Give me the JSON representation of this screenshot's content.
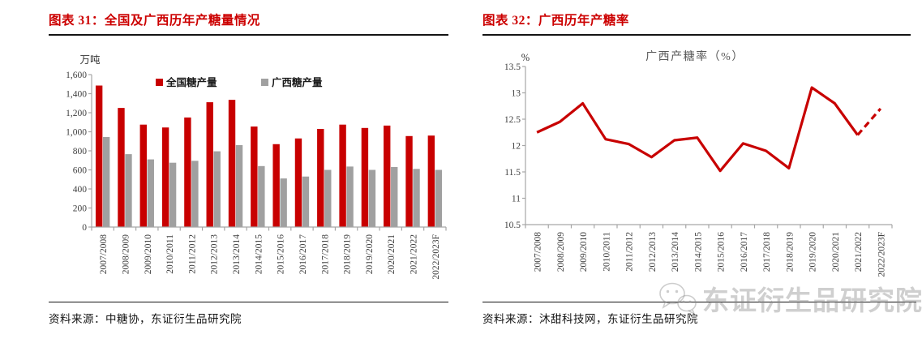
{
  "figure_left": {
    "title": "图表 31：全国及广西历年产糖量情况",
    "source": "资料来源：中糖协，东证衍生品研究院"
  },
  "figure_right": {
    "title": "图表 32：广西历年产糖率",
    "source": "资料来源：沐甜科技网，东证衍生品研究院"
  },
  "watermark": {
    "text": "东证衍生品研究院",
    "icon": "wechat-logo"
  },
  "colors": {
    "title_red": "#CC0000",
    "series_red": "#C80000",
    "series_gray": "#A0A0A0",
    "axis_gray": "#A6A6A6",
    "tick_text": "#404040",
    "chart_title_gray": "#595959"
  },
  "chart_data": [
    {
      "type": "bar",
      "title": "",
      "unit_label": "万吨",
      "grid": false,
      "legend_position": "top-center",
      "ylim": [
        0,
        1600
      ],
      "ytick_step": 200,
      "categories": [
        "2007/2008",
        "2008/2009",
        "2009/2010",
        "2010/2011",
        "2011/2012",
        "2012/2013",
        "2013/2014",
        "2014/2015",
        "2015/2016",
        "2016/2017",
        "2017/2018",
        "2018/2019",
        "2019/2020",
        "2020/2021",
        "2021/2022",
        "2022/2023F"
      ],
      "series": [
        {
          "name": "全国糖产量",
          "color": "#C80000",
          "values": [
            1485,
            1250,
            1075,
            1045,
            1150,
            1310,
            1335,
            1055,
            870,
            930,
            1030,
            1075,
            1040,
            1065,
            955,
            960
          ]
        },
        {
          "name": "广西糖产量",
          "color": "#A0A0A0",
          "values": [
            945,
            765,
            710,
            675,
            695,
            795,
            860,
            640,
            510,
            530,
            600,
            635,
            600,
            630,
            610,
            600
          ]
        }
      ]
    },
    {
      "type": "line",
      "title": "广西产糖率（%）",
      "unit_label": "%",
      "grid": false,
      "legend_position": "none",
      "ylim": [
        10.5,
        13.5
      ],
      "ytick_step": 0.5,
      "categories": [
        "2007/2008",
        "2008/2009",
        "2009/2010",
        "2010/2011",
        "2011/2012",
        "2012/2013",
        "2013/2014",
        "2014/2015",
        "2015/2016",
        "2016/2017",
        "2017/2018",
        "2018/2019",
        "2019/2020",
        "2020/2021",
        "2021/2022",
        "2022/2023F"
      ],
      "series": [
        {
          "name": "广西产糖率",
          "color": "#C80000",
          "values": [
            12.25,
            12.45,
            12.8,
            12.12,
            12.03,
            11.78,
            12.1,
            12.15,
            11.52,
            12.04,
            11.9,
            11.57,
            13.1,
            12.8,
            12.2,
            12.7
          ],
          "dashed_from_index": 14
        }
      ]
    }
  ]
}
